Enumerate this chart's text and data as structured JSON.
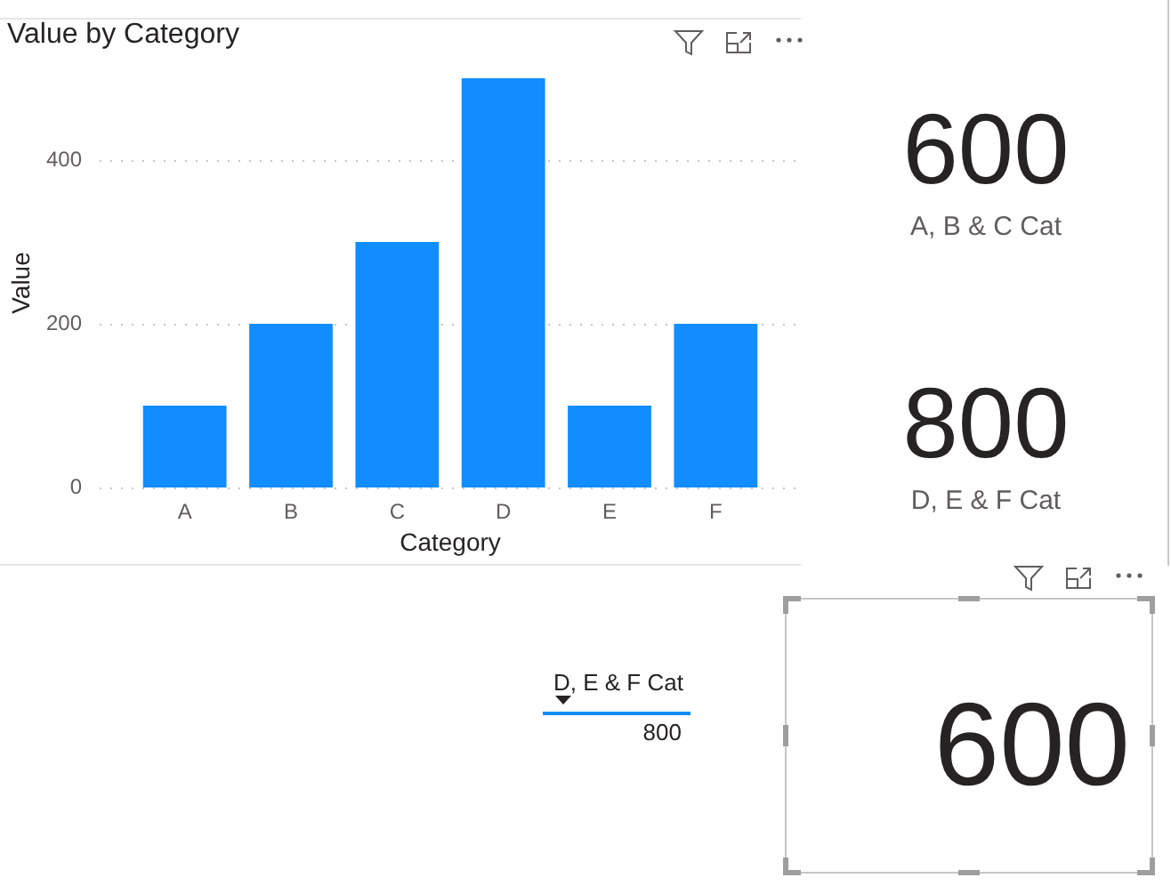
{
  "chart_data": [
    {
      "type": "bar",
      "title": "Value by Category",
      "xlabel": "Category",
      "ylabel": "Value",
      "categories": [
        "A",
        "B",
        "C",
        "D",
        "E",
        "F"
      ],
      "values": [
        100,
        200,
        300,
        500,
        100,
        200
      ],
      "color": "#118dff",
      "ylim": [
        0,
        500
      ],
      "yticks": [
        0,
        200,
        400
      ],
      "grid": "y"
    },
    {
      "type": "other",
      "categories": [
        "A, B & C Cat"
      ],
      "values": [
        600
      ],
      "data_labels": true
    },
    {
      "type": "other",
      "categories": [
        "D, E & F Cat"
      ],
      "values": [
        800
      ],
      "data_labels": true
    },
    {
      "type": "other",
      "categories": [
        "D, E & F Cat"
      ],
      "values": [
        800
      ],
      "data_labels": true
    },
    {
      "type": "other",
      "values": [
        600
      ],
      "data_labels": true
    }
  ]
}
